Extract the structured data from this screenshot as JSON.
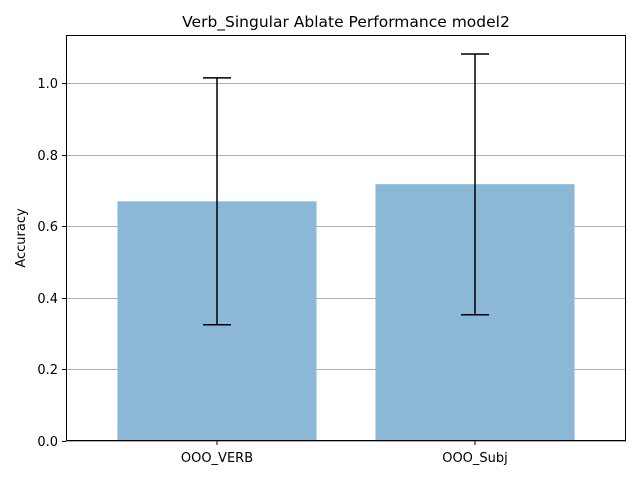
{
  "chart_data": {
    "type": "bar",
    "title": "Verb_Singular Ablate Performance model2",
    "xlabel": "",
    "ylabel": "Accuracy",
    "categories": [
      "OOO_VERB",
      "OOO_Subj"
    ],
    "values": [
      0.67,
      0.718
    ],
    "error_low": [
      0.325,
      0.353
    ],
    "error_high": [
      1.015,
      1.082
    ],
    "ylim": [
      0,
      1.135
    ],
    "yticks": [
      0.0,
      0.2,
      0.4,
      0.6,
      0.8,
      1.0
    ],
    "ytick_labels": [
      "0.0",
      "0.2",
      "0.4",
      "0.6",
      "0.8",
      "1.0"
    ],
    "grid": "y",
    "bar_color": "#8cb8d8",
    "error_color": "#000000",
    "grid_color": "#b0b0b0"
  }
}
